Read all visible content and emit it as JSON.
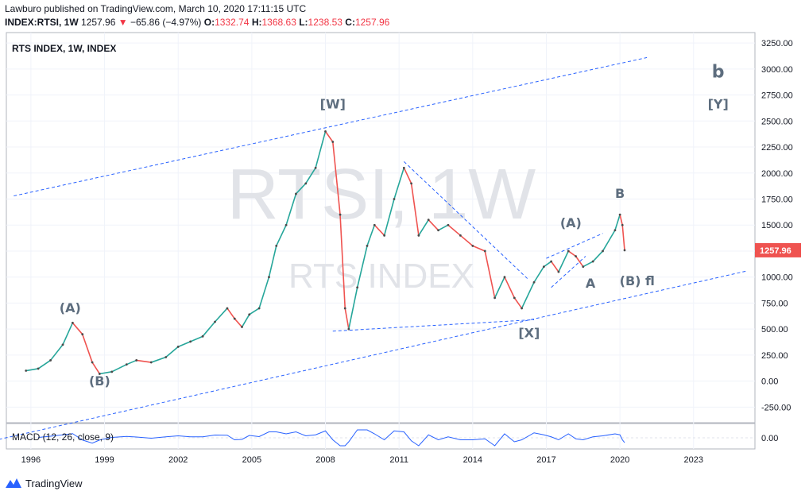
{
  "header": {
    "published_line": "Lawburo published on TradingView.com, March 10, 2020 17:11:15 UTC",
    "symbol": "INDEX:RTSI, 1W",
    "last": "1257.96",
    "change": "−65.86 (−4.97%)",
    "o_label": "O:",
    "o_value": "1332.74",
    "h_label": "H:",
    "h_value": "1368.63",
    "l_label": "L:",
    "l_value": "1238.53",
    "c_label": "C:",
    "c_value": "1257.96"
  },
  "chart_data": {
    "type": "line",
    "title": "RTS INDEX, 1W, INDEX",
    "watermark": "RTSI, 1W",
    "watermark_sub": "RTS INDEX",
    "ylim": [
      -400,
      3350
    ],
    "xlim": [
      1995.0,
      2025.5
    ],
    "y_ticks": [
      "3250.00",
      "3000.00",
      "2750.00",
      "2500.00",
      "2250.00",
      "2000.00",
      "1750.00",
      "1500.00",
      "1250.00",
      "1000.00",
      "750.00",
      "500.00",
      "250.00",
      "0.00",
      "-250.00"
    ],
    "y_tick_values": [
      3250,
      3000,
      2750,
      2500,
      2250,
      2000,
      1750,
      1500,
      1250,
      1000,
      750,
      500,
      250,
      0,
      -250
    ],
    "x_ticks": [
      "1996",
      "1999",
      "2002",
      "2005",
      "2008",
      "2011",
      "2014",
      "2017",
      "2020",
      "2023"
    ],
    "x_tick_values": [
      1996,
      1999,
      2002,
      2005,
      2008,
      2011,
      2014,
      2017,
      2020,
      2023
    ],
    "last_price_label": "1257.96",
    "last_price": 1257.96,
    "series": [
      {
        "x": [
          1995.8,
          1996.3,
          1996.8,
          1997.3,
          1997.7,
          1998.1,
          1998.5,
          1998.8,
          1999.3,
          1999.9,
          2000.3,
          2000.9,
          2001.5,
          2002.0,
          2002.5,
          2003.0,
          2003.5,
          2004.0,
          2004.3,
          2004.6,
          2004.9,
          2005.3,
          2005.7,
          2006.0,
          2006.4,
          2006.8,
          2007.2,
          2007.6,
          2008.0,
          2008.3,
          2008.6,
          2008.8,
          2008.95,
          2009.3,
          2009.7,
          2010.0,
          2010.4,
          2010.8,
          2011.2,
          2011.5,
          2011.8,
          2012.2,
          2012.6,
          2013.0,
          2013.5,
          2014.0,
          2014.5,
          2014.9,
          2015.3,
          2015.7,
          2016.0,
          2016.5,
          2016.9,
          2017.2,
          2017.5,
          2017.9,
          2018.2,
          2018.5,
          2018.9,
          2019.3,
          2019.8,
          2020.0,
          2020.1,
          2020.19
        ],
        "y": [
          100,
          120,
          200,
          350,
          560,
          450,
          180,
          70,
          90,
          160,
          200,
          180,
          230,
          330,
          380,
          430,
          570,
          700,
          600,
          520,
          640,
          700,
          1000,
          1300,
          1500,
          1800,
          1900,
          2050,
          2400,
          2300,
          1600,
          700,
          500,
          900,
          1300,
          1500,
          1400,
          1750,
          2050,
          1900,
          1400,
          1550,
          1450,
          1500,
          1400,
          1300,
          1250,
          800,
          1000,
          800,
          700,
          950,
          1100,
          1150,
          1050,
          1250,
          1200,
          1100,
          1150,
          1250,
          1450,
          1600,
          1500,
          1258
        ]
      }
    ],
    "trendlines": [
      {
        "x": [
          1995.3,
          2021.1
        ],
        "y": [
          1780,
          3110
        ]
      },
      {
        "x": [
          1994.7,
          2025.2
        ],
        "y": [
          -560,
          1060
        ]
      },
      {
        "x": [
          2008.3,
          2016.5
        ],
        "y": [
          480,
          590
        ]
      },
      {
        "x": [
          2011.2,
          2016.3
        ],
        "y": [
          2110,
          970
        ]
      },
      {
        "x": [
          2017.0,
          2019.3
        ],
        "y": [
          1180,
          1420
        ]
      },
      {
        "x": [
          2017.2,
          2018.6
        ],
        "y": [
          900,
          1200
        ]
      }
    ],
    "annotations": [
      {
        "text": "(A)",
        "x": 1997.6,
        "y": 660,
        "size": 16
      },
      {
        "text": "(B)",
        "x": 1998.8,
        "y": -40,
        "size": 16
      },
      {
        "text": "[W]",
        "x": 2008.3,
        "y": 2620,
        "size": 16
      },
      {
        "text": "[X]",
        "x": 2016.3,
        "y": 420,
        "size": 16
      },
      {
        "text": "(A)",
        "x": 2018.0,
        "y": 1480,
        "size": 16
      },
      {
        "text": "A",
        "x": 2018.8,
        "y": 900,
        "size": 16
      },
      {
        "text": "B",
        "x": 2020.0,
        "y": 1760,
        "size": 16
      },
      {
        "text": "(B) fl",
        "x": 2020.7,
        "y": 920,
        "size": 16
      },
      {
        "text": "b",
        "x": 2024.0,
        "y": 2920,
        "size": 22
      },
      {
        "text": "[Y]",
        "x": 2024.0,
        "y": 2620,
        "size": 16
      }
    ],
    "macd_label": "MACD (12, 26, close, 9)",
    "macd_axis_label": "0.00",
    "grid": true,
    "line_color": "#26a69a",
    "down_color": "#ef5350",
    "trend_color": "#2962ff",
    "annotation_color": "#5d6d7e"
  },
  "footer": {
    "brand": "TradingView"
  }
}
